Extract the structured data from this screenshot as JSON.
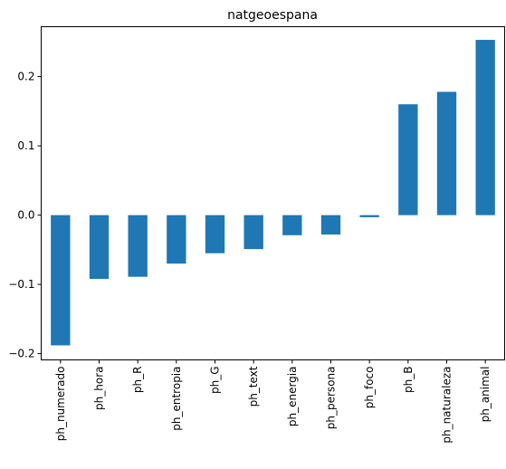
{
  "chart_data": {
    "type": "bar",
    "title": "natgeoespana",
    "xlabel": "",
    "ylabel": "",
    "categories": [
      "ph_numerado",
      "ph_hora",
      "ph_R",
      "ph_entropia",
      "ph_G",
      "ph_text",
      "ph_energia",
      "ph_persona",
      "ph_foco",
      "ph_B",
      "ph_naturaleza",
      "ph_animal"
    ],
    "values": [
      -0.188,
      -0.092,
      -0.089,
      -0.07,
      -0.055,
      -0.049,
      -0.029,
      -0.028,
      -0.003,
      0.16,
      0.178,
      0.253
    ],
    "ylim": [
      -0.209,
      0.272
    ],
    "yticks": [
      -0.2,
      -0.1,
      0.0,
      0.1,
      0.2
    ],
    "ytick_labels": [
      "−0.2",
      "−0.1",
      "0.0",
      "0.1",
      "0.2"
    ],
    "bar_color": "#1f77b4",
    "grid": false,
    "legend": "none"
  }
}
